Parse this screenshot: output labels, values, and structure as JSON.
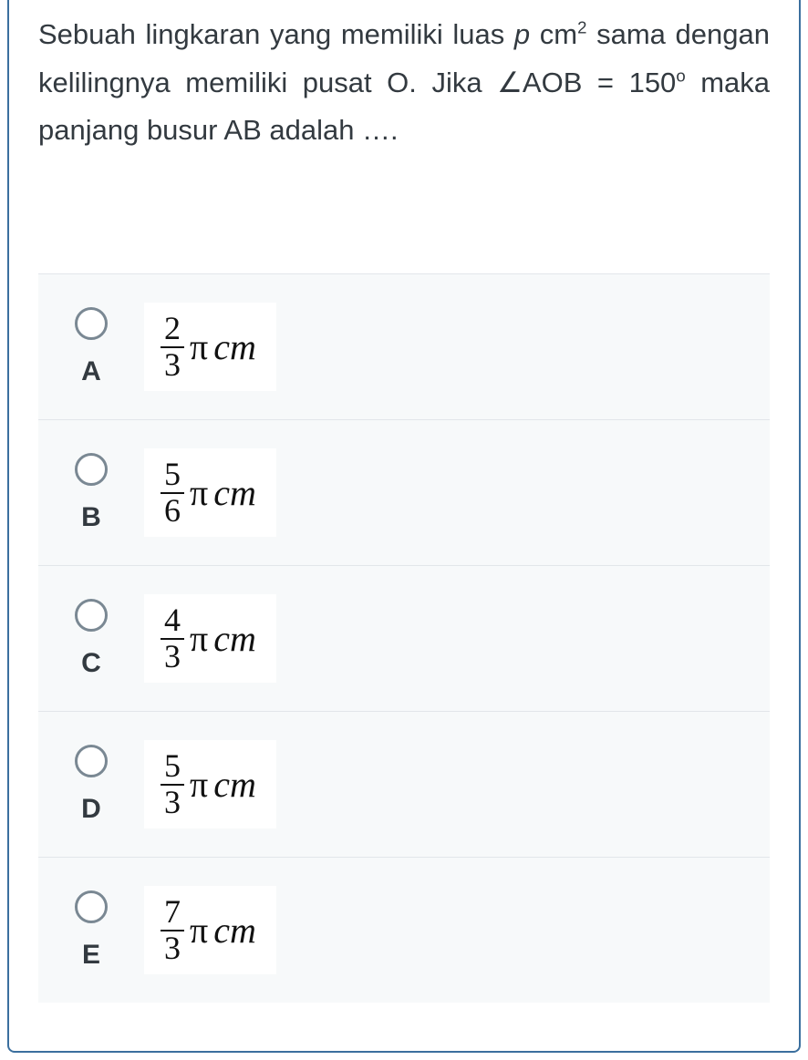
{
  "question": {
    "seg1": "Sebuah lingkaran yang memiliki luas ",
    "pvar": "p",
    "seg2": " cm",
    "sup2": "2",
    "seg3": " sama dengan kelilingnya memiliki pusat O. Jika ∠AOB = 150",
    "sup_deg": "o",
    "seg4": " maka panjang busur AB adalah …."
  },
  "options": [
    {
      "letter": "A",
      "num": "2",
      "den": "3",
      "pi": "π",
      "unit": "cm"
    },
    {
      "letter": "B",
      "num": "5",
      "den": "6",
      "pi": "π",
      "unit": "cm"
    },
    {
      "letter": "C",
      "num": "4",
      "den": "3",
      "pi": "π",
      "unit": "cm"
    },
    {
      "letter": "D",
      "num": "5",
      "den": "3",
      "pi": "π",
      "unit": "cm"
    },
    {
      "letter": "E",
      "num": "7",
      "den": "3",
      "pi": "π",
      "unit": "cm"
    }
  ],
  "style": {
    "card_border": "#3b6f9e",
    "option_bg": "#f7f9fa",
    "divider": "#e2e6ea",
    "text_color": "#333a40",
    "radio_border": "#7a8893",
    "formula_bg": "#ffffff"
  }
}
